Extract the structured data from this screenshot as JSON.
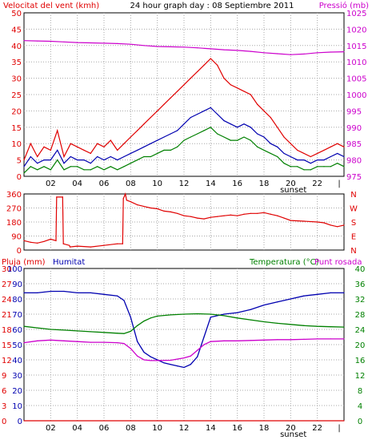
{
  "colors": {
    "wind_red": "#e00000",
    "wind_blue": "#0000b0",
    "wind_green": "#008000",
    "pressure": "#cc00cc",
    "rain": "#e00000",
    "humidity": "#0000b0",
    "temperature": "#008000",
    "dewpoint": "#cc00cc",
    "grid": "#a8a8a8",
    "frame": "#000000"
  },
  "header": {
    "left_title": "Velocitat del vent (kmh)",
    "center_title": "24 hour graph day : 08 Septiembre 2011",
    "right_title": "Pressió (mb)"
  },
  "chart_data": [
    {
      "id": "wind_pressure",
      "type": "line",
      "title": "24 hour graph day : 08 Septiembre 2011",
      "ylabel": "Velocitat del vent (kmh)",
      "ylabel_right": "Pressió (mb)",
      "ylim": [
        0,
        50
      ],
      "ylim_right": [
        975,
        1025
      ],
      "y_ticks": [
        "0",
        "5",
        "10",
        "15",
        "20",
        "25",
        "30",
        "35",
        "40",
        "45",
        "50"
      ],
      "y_ticks_right": [
        "975",
        "980",
        "985",
        "990",
        "995",
        "1000",
        "1005",
        "1010",
        "1015",
        "1020",
        "1025"
      ],
      "x_tick_labels": [
        "02",
        "04",
        "06",
        "08",
        "10",
        "12",
        "14",
        "16",
        "18",
        "20",
        "22"
      ],
      "x_marker_label": "sunset",
      "x_marker_hour": 20.2,
      "xlim": [
        0,
        24
      ],
      "grid": true,
      "series": [
        {
          "color_key": "wind_red",
          "axis": "left",
          "x": [
            0,
            0.5,
            1,
            1.5,
            2,
            2.5,
            3,
            3.5,
            4,
            4.5,
            5,
            5.5,
            6,
            6.5,
            7,
            7.5,
            8,
            8.5,
            9,
            9.5,
            10,
            10.5,
            11,
            11.5,
            12,
            12.5,
            13,
            13.5,
            14,
            14.5,
            15,
            15.5,
            16,
            16.5,
            17,
            17.5,
            18,
            18.5,
            19,
            19.5,
            20,
            20.5,
            21,
            21.5,
            22,
            22.5,
            23,
            23.5,
            24
          ],
          "y": [
            5,
            10,
            6,
            9,
            8,
            14,
            6,
            10,
            9,
            8,
            7,
            10,
            9,
            11,
            8,
            10,
            12,
            14,
            16,
            18,
            20,
            22,
            24,
            26,
            28,
            30,
            32,
            34,
            36,
            34,
            30,
            28,
            27,
            26,
            25,
            22,
            20,
            18,
            15,
            12,
            10,
            8,
            7,
            6,
            7,
            8,
            9,
            10,
            9
          ]
        },
        {
          "color_key": "wind_blue",
          "axis": "left",
          "x": [
            0,
            0.5,
            1,
            1.5,
            2,
            2.5,
            3,
            3.5,
            4,
            4.5,
            5,
            5.5,
            6,
            6.5,
            7,
            7.5,
            8,
            8.5,
            9,
            9.5,
            10,
            10.5,
            11,
            11.5,
            12,
            12.5,
            13,
            13.5,
            14,
            14.5,
            15,
            15.5,
            16,
            16.5,
            17,
            17.5,
            18,
            18.5,
            19,
            19.5,
            20,
            20.5,
            21,
            21.5,
            22,
            22.5,
            23,
            23.5,
            24
          ],
          "y": [
            3,
            6,
            4,
            5,
            5,
            8,
            4,
            6,
            5,
            5,
            4,
            6,
            5,
            6,
            5,
            6,
            7,
            8,
            9,
            10,
            11,
            12,
            13,
            14,
            16,
            18,
            19,
            20,
            21,
            19,
            17,
            16,
            15,
            16,
            15,
            13,
            12,
            10,
            9,
            7,
            6,
            5,
            5,
            4,
            5,
            5,
            6,
            7,
            6
          ]
        },
        {
          "color_key": "wind_green",
          "axis": "left",
          "x": [
            0,
            0.5,
            1,
            1.5,
            2,
            2.5,
            3,
            3.5,
            4,
            4.5,
            5,
            5.5,
            6,
            6.5,
            7,
            7.5,
            8,
            8.5,
            9,
            9.5,
            10,
            10.5,
            11,
            11.5,
            12,
            12.5,
            13,
            13.5,
            14,
            14.5,
            15,
            15.5,
            16,
            16.5,
            17,
            17.5,
            18,
            18.5,
            19,
            19.5,
            20,
            20.5,
            21,
            21.5,
            22,
            22.5,
            23,
            23.5,
            24
          ],
          "y": [
            1,
            3,
            2,
            3,
            2,
            5,
            2,
            3,
            3,
            2,
            2,
            3,
            2,
            3,
            2,
            3,
            4,
            5,
            6,
            6,
            7,
            8,
            8,
            9,
            11,
            12,
            13,
            14,
            15,
            13,
            12,
            11,
            11,
            12,
            11,
            9,
            8,
            7,
            6,
            4,
            3,
            3,
            2,
            2,
            3,
            3,
            3,
            4,
            3
          ]
        },
        {
          "color_key": "pressure",
          "axis": "right",
          "x": [
            0,
            1,
            2,
            3,
            4,
            5,
            6,
            7,
            8,
            9,
            10,
            11,
            12,
            13,
            14,
            15,
            16,
            17,
            18,
            19,
            20,
            21,
            22,
            23,
            24
          ],
          "y": [
            1016.5,
            1016.4,
            1016.3,
            1016.1,
            1015.9,
            1015.8,
            1015.7,
            1015.6,
            1015.4,
            1015.0,
            1014.7,
            1014.6,
            1014.5,
            1014.3,
            1014.0,
            1013.7,
            1013.5,
            1013.2,
            1012.8,
            1012.5,
            1012.2,
            1012.4,
            1012.8,
            1013.0,
            1013.1
          ]
        }
      ]
    },
    {
      "id": "wind_direction",
      "type": "line",
      "ylim": [
        0,
        360
      ],
      "y_ticks": [
        "0",
        "90",
        "180",
        "270",
        "360"
      ],
      "y_ticks_right": [
        "N",
        "E",
        "S",
        "W",
        "N"
      ],
      "xlim": [
        0,
        24
      ],
      "grid": true,
      "series": [
        {
          "color_key": "wind_red",
          "x": [
            0,
            0.5,
            1,
            1.5,
            2,
            2.4,
            2.45,
            2.9,
            2.95,
            3.4,
            3.45,
            4,
            5,
            6,
            7,
            7.4,
            7.45,
            7.6,
            7.7,
            8,
            8.5,
            9,
            9.5,
            10,
            10.5,
            11,
            11.5,
            12,
            12.5,
            13,
            13.5,
            14,
            14.5,
            15,
            15.5,
            16,
            16.5,
            17,
            17.5,
            18,
            18.5,
            19,
            19.5,
            20,
            21,
            22,
            22.5,
            23,
            23.5,
            24
          ],
          "y": [
            60,
            50,
            45,
            55,
            70,
            60,
            340,
            340,
            40,
            30,
            20,
            25,
            20,
            30,
            40,
            40,
            330,
            360,
            320,
            310,
            290,
            280,
            270,
            265,
            250,
            245,
            235,
            220,
            215,
            205,
            200,
            210,
            215,
            220,
            225,
            220,
            230,
            235,
            235,
            240,
            230,
            220,
            205,
            190,
            185,
            180,
            175,
            160,
            150,
            160
          ]
        }
      ]
    },
    {
      "id": "humidity_temperature",
      "type": "line",
      "ylabel_left_outer": "Pluja (mm)",
      "ylabel_left_inner": "Humitat",
      "ylabel_right": "Temperatura (°C)",
      "ylabel_right_2": "Punt rosada",
      "y_ticks_rain": [
        "0",
        "3",
        "6",
        "9",
        "12",
        "15",
        "18",
        "21",
        "24",
        "27",
        "30"
      ],
      "y_ticks_humidity": [
        "0",
        "10",
        "20",
        "30",
        "40",
        "50",
        "60",
        "70",
        "80",
        "90",
        "100"
      ],
      "y_ticks_temp": [
        "0",
        "4",
        "8",
        "12",
        "16",
        "20",
        "24",
        "28",
        "32",
        "36",
        "40"
      ],
      "ylim_rain": [
        0,
        30
      ],
      "ylim_humidity": [
        0,
        100
      ],
      "ylim_temp": [
        0,
        40
      ],
      "x_tick_labels": [
        "02",
        "04",
        "06",
        "08",
        "10",
        "12",
        "14",
        "16",
        "18",
        "20",
        "22"
      ],
      "x_marker_label": "sunset",
      "x_marker_hour": 20.2,
      "xlim": [
        0,
        24
      ],
      "grid": true,
      "series": [
        {
          "color_key": "humidity",
          "axis": "humidity",
          "x": [
            0,
            1,
            2,
            3,
            4,
            5,
            6,
            7,
            7.5,
            8,
            8.5,
            9,
            9.5,
            10,
            10.5,
            11,
            11.5,
            12,
            12.5,
            13,
            13.5,
            14,
            15,
            16,
            17,
            18,
            19,
            20,
            21,
            22,
            23,
            24
          ],
          "y": [
            84,
            84,
            85,
            85,
            84,
            84,
            83,
            82,
            79,
            68,
            52,
            45,
            42,
            40,
            38,
            37,
            36,
            35,
            37,
            42,
            55,
            68,
            70,
            71,
            73,
            76,
            78,
            80,
            82,
            83,
            84,
            84
          ]
        },
        {
          "color_key": "temperature",
          "axis": "temp",
          "x": [
            0,
            1,
            2,
            3,
            4,
            5,
            6,
            7,
            7.5,
            8,
            8.5,
            9,
            9.5,
            10,
            11,
            12,
            13,
            14,
            15,
            16,
            17,
            18,
            19,
            20,
            21,
            22,
            23,
            24
          ],
          "y": [
            24.8,
            24.4,
            24.0,
            23.8,
            23.6,
            23.4,
            23.2,
            23.0,
            22.9,
            23.5,
            25.0,
            26.2,
            27.0,
            27.5,
            27.8,
            28.0,
            28.1,
            28.0,
            27.6,
            27.0,
            26.5,
            26.0,
            25.6,
            25.3,
            25.0,
            24.8,
            24.7,
            24.6
          ]
        },
        {
          "color_key": "dewpoint",
          "axis": "temp",
          "x": [
            0,
            1,
            2,
            3,
            4,
            5,
            6,
            7,
            7.5,
            8,
            8.5,
            9,
            9.5,
            10,
            11,
            12,
            12.5,
            13,
            13.5,
            14,
            15,
            16,
            17,
            18,
            19,
            20,
            21,
            22,
            23,
            24
          ],
          "y": [
            20.5,
            21.0,
            21.2,
            21.0,
            20.8,
            20.6,
            20.6,
            20.5,
            20.3,
            19.0,
            17.0,
            16.0,
            15.8,
            15.8,
            15.9,
            16.5,
            17.0,
            18.5,
            20.0,
            20.8,
            21.0,
            21.0,
            21.1,
            21.2,
            21.3,
            21.3,
            21.4,
            21.5,
            21.5,
            21.5
          ]
        },
        {
          "color_key": "rain",
          "axis": "rain",
          "x": [
            0,
            24
          ],
          "y": [
            0,
            0
          ]
        }
      ]
    }
  ]
}
